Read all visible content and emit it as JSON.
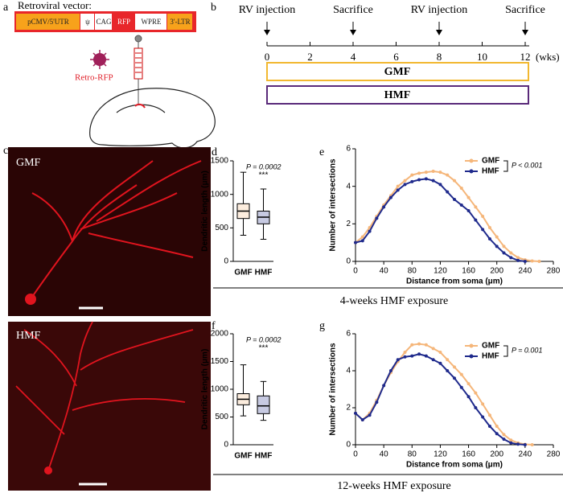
{
  "panel_labels": [
    "a",
    "b",
    "c",
    "d",
    "e",
    "f",
    "g"
  ],
  "vector": {
    "title": "Retroviral vector:",
    "segments": [
      "pCMV/5'UTR",
      "ψ",
      "CAG",
      "RFP",
      "WPRE",
      "3'-LTR"
    ],
    "virus_label": "Retro-RFP"
  },
  "timeline": {
    "events": [
      {
        "label": "RV injection",
        "week": 0
      },
      {
        "label": "Sacrifice",
        "week": 4
      },
      {
        "label": "RV injection",
        "week": 8
      },
      {
        "label": "Sacrifice",
        "week": 12
      }
    ],
    "ticks": [
      0,
      2,
      4,
      6,
      8,
      10,
      12
    ],
    "unit": "(wks)",
    "groups": [
      "GMF",
      "HMF"
    ]
  },
  "images": [
    {
      "label": "GMF"
    },
    {
      "label": "HMF"
    }
  ],
  "exposures": [
    "4-weeks HMF exposure",
    "12-weeks HMF exposure"
  ],
  "chart_data": [
    {
      "type": "box",
      "y_label": "Dendritic length (μm)",
      "categories": [
        "GMF",
        "HMF"
      ],
      "colors": [
        "#f5b67a",
        "#1f2a8c"
      ],
      "boxes": [
        {
          "min": 390,
          "q1": 640,
          "median": 750,
          "q3": 860,
          "max": 1330
        },
        {
          "min": 330,
          "q1": 560,
          "median": 660,
          "q3": 750,
          "max": 1080
        }
      ],
      "annotations": [
        "P = 0.0002",
        "***"
      ],
      "ylim": [
        0,
        1500
      ],
      "yticks": [
        0,
        500,
        1000,
        1500
      ]
    },
    {
      "type": "line",
      "x_label": "Distance from soma (μm)",
      "y_label": "Number of intersections",
      "x": [
        0,
        10,
        20,
        30,
        40,
        50,
        60,
        70,
        80,
        90,
        100,
        110,
        120,
        130,
        140,
        150,
        160,
        170,
        180,
        190,
        200,
        210,
        220,
        230,
        240,
        250,
        260
      ],
      "series": [
        {
          "name": "GMF",
          "color": "#f5b67a",
          "values": [
            1.0,
            1.3,
            1.8,
            2.4,
            3.0,
            3.5,
            4.0,
            4.3,
            4.6,
            4.7,
            4.75,
            4.8,
            4.75,
            4.6,
            4.3,
            3.9,
            3.4,
            2.9,
            2.4,
            1.8,
            1.3,
            0.8,
            0.45,
            0.2,
            0.08,
            0.02,
            0
          ]
        },
        {
          "name": "HMF",
          "color": "#1f2a8c",
          "values": [
            1.0,
            1.1,
            1.6,
            2.3,
            2.9,
            3.4,
            3.8,
            4.1,
            4.25,
            4.35,
            4.4,
            4.3,
            4.1,
            3.7,
            3.3,
            3.0,
            2.7,
            2.2,
            1.7,
            1.2,
            0.8,
            0.45,
            0.2,
            0.05,
            0,
            null,
            null
          ]
        }
      ],
      "annotations": [
        "P < 0.001"
      ],
      "xlim": [
        0,
        280
      ],
      "xticks": [
        0,
        40,
        80,
        120,
        160,
        200,
        240,
        280
      ],
      "ylim": [
        0,
        6
      ],
      "yticks": [
        0,
        2,
        4,
        6
      ]
    },
    {
      "type": "box",
      "y_label": "Dendritic length (μm)",
      "categories": [
        "GMF",
        "HMF"
      ],
      "colors": [
        "#f5b67a",
        "#1f2a8c"
      ],
      "boxes": [
        {
          "min": 520,
          "q1": 720,
          "median": 820,
          "q3": 920,
          "max": 1440
        },
        {
          "min": 440,
          "q1": 560,
          "median": 700,
          "q3": 880,
          "max": 1140
        }
      ],
      "annotations": [
        "P = 0.0002",
        "***"
      ],
      "ylim": [
        0,
        2000
      ],
      "yticks": [
        0,
        500,
        1000,
        1500,
        2000
      ]
    },
    {
      "type": "line",
      "x_label": "Distance from soma (μm)",
      "y_label": "Number of intersections",
      "x": [
        0,
        10,
        20,
        30,
        40,
        50,
        60,
        70,
        80,
        90,
        100,
        110,
        120,
        130,
        140,
        150,
        160,
        170,
        180,
        190,
        200,
        210,
        220,
        230,
        240,
        250
      ],
      "series": [
        {
          "name": "GMF",
          "color": "#f5b67a",
          "values": [
            1.7,
            1.35,
            1.7,
            2.4,
            3.2,
            3.9,
            4.5,
            5.0,
            5.4,
            5.45,
            5.4,
            5.2,
            5.0,
            4.6,
            4.2,
            3.8,
            3.3,
            2.8,
            2.2,
            1.6,
            1.0,
            0.55,
            0.25,
            0.1,
            0.02,
            0
          ]
        },
        {
          "name": "HMF",
          "color": "#1f2a8c",
          "values": [
            1.7,
            1.35,
            1.6,
            2.3,
            3.2,
            4.0,
            4.6,
            4.75,
            4.8,
            4.9,
            4.8,
            4.6,
            4.4,
            4.0,
            3.6,
            3.1,
            2.6,
            2.0,
            1.5,
            1.0,
            0.6,
            0.3,
            0.1,
            0.03,
            0,
            null
          ]
        }
      ],
      "annotations": [
        "P = 0.001"
      ],
      "xlim": [
        0,
        280
      ],
      "xticks": [
        0,
        40,
        80,
        120,
        160,
        200,
        240,
        280
      ],
      "ylim": [
        0,
        6
      ],
      "yticks": [
        0,
        2,
        4,
        6
      ]
    }
  ]
}
